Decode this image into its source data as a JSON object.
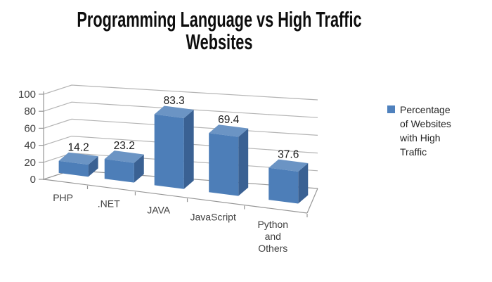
{
  "title": "Programming Language vs High Traffic Websites",
  "legend": {
    "label": "Percentage of Websites with High Traffic",
    "swatch_color": "#4F81BD"
  },
  "chart_data": {
    "type": "bar",
    "projection": "3d-perspective",
    "title": "Programming Language vs High Traffic Websites",
    "xlabel": "",
    "ylabel": "",
    "categories": [
      "PHP",
      ".NET",
      "JAVA",
      "JavaScript",
      "Python and Others"
    ],
    "series": [
      {
        "name": "Percentage of Websites with High Traffic",
        "values": [
          14.2,
          23.2,
          83.3,
          69.4,
          37.6
        ]
      }
    ],
    "data_labels": [
      "14.2",
      "23.2",
      "83.3",
      "69.4",
      "37.6"
    ],
    "ylim": [
      0,
      100
    ],
    "yticks": [
      0,
      20,
      40,
      60,
      80,
      100
    ],
    "grid": "on",
    "legend_position": "right",
    "colors": {
      "bar_front": "#4D7EB8",
      "bar_side": "#3A6193",
      "bar_top": "#6B94C4",
      "gridline": "#b4b4b4",
      "axis": "#969696",
      "tick_label": "#404040",
      "category_label": "#404040",
      "data_label": "#1a1a1a"
    }
  }
}
